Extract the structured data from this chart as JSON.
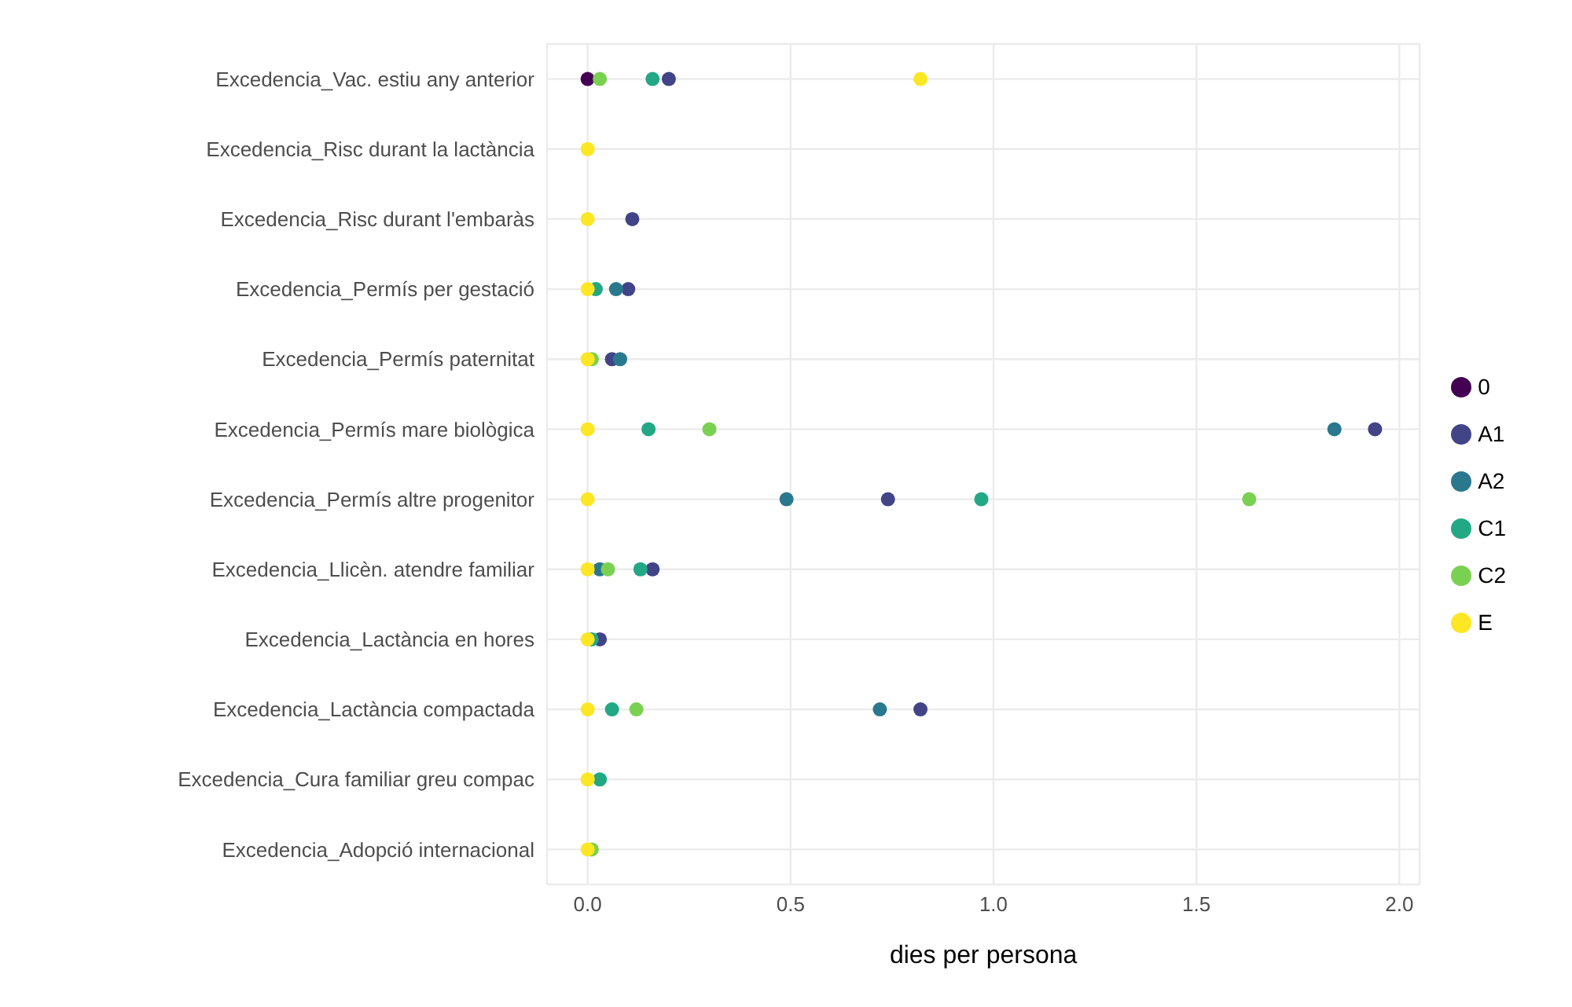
{
  "chart_data": {
    "type": "scatter",
    "xlabel": "dies per persona",
    "categories": [
      "Excedencia_Vac. estiu any anterior",
      "Excedencia_Risc durant la lactància",
      "Excedencia_Risc durant l'embaràs",
      "Excedencia_Permís per gestació",
      "Excedencia_Permís paternitat",
      "Excedencia_Permís mare biològica",
      "Excedencia_Permís altre progenitor",
      "Excedencia_Llicèn. atendre familiar",
      "Excedencia_Lactància en hores",
      "Excedencia_Lactància compactada",
      "Excedencia_Cura familiar greu compac",
      "Excedencia_Adopció internacional"
    ],
    "series": [
      {
        "name": "0",
        "color": "#440154",
        "values": [
          0.0,
          null,
          null,
          null,
          null,
          null,
          null,
          null,
          null,
          null,
          null,
          null
        ]
      },
      {
        "name": "A1",
        "color": "#414487",
        "values": [
          0.2,
          null,
          0.11,
          0.1,
          0.06,
          1.94,
          0.74,
          0.16,
          0.03,
          0.82,
          null,
          null
        ]
      },
      {
        "name": "A2",
        "color": "#2a788e",
        "values": [
          null,
          null,
          null,
          0.07,
          0.08,
          1.84,
          0.49,
          0.03,
          null,
          0.72,
          null,
          null
        ]
      },
      {
        "name": "C1",
        "color": "#22a884",
        "values": [
          0.16,
          null,
          null,
          0.02,
          null,
          0.15,
          0.97,
          0.13,
          0.01,
          0.06,
          0.03,
          null
        ]
      },
      {
        "name": "C2",
        "color": "#7ad151",
        "values": [
          0.03,
          null,
          null,
          null,
          0.01,
          0.3,
          1.63,
          0.05,
          null,
          0.12,
          null,
          0.01
        ]
      },
      {
        "name": "E",
        "color": "#fde725",
        "values": [
          0.82,
          0.0,
          0.0,
          0.0,
          0.0,
          0.0,
          0.0,
          0.0,
          0.0,
          0.0,
          0.0,
          0.0
        ]
      }
    ],
    "xlim": [
      -0.1,
      2.05
    ],
    "xticks": [
      {
        "value": 0,
        "label": "0.0"
      },
      {
        "value": 0.5,
        "label": "0.5"
      },
      {
        "value": 1,
        "label": "1.0"
      },
      {
        "value": 1.5,
        "label": "1.5"
      },
      {
        "value": 2,
        "label": "2.0"
      }
    ],
    "grid": true,
    "legend": "right",
    "marker": "circle",
    "orientation": "horizontal"
  }
}
